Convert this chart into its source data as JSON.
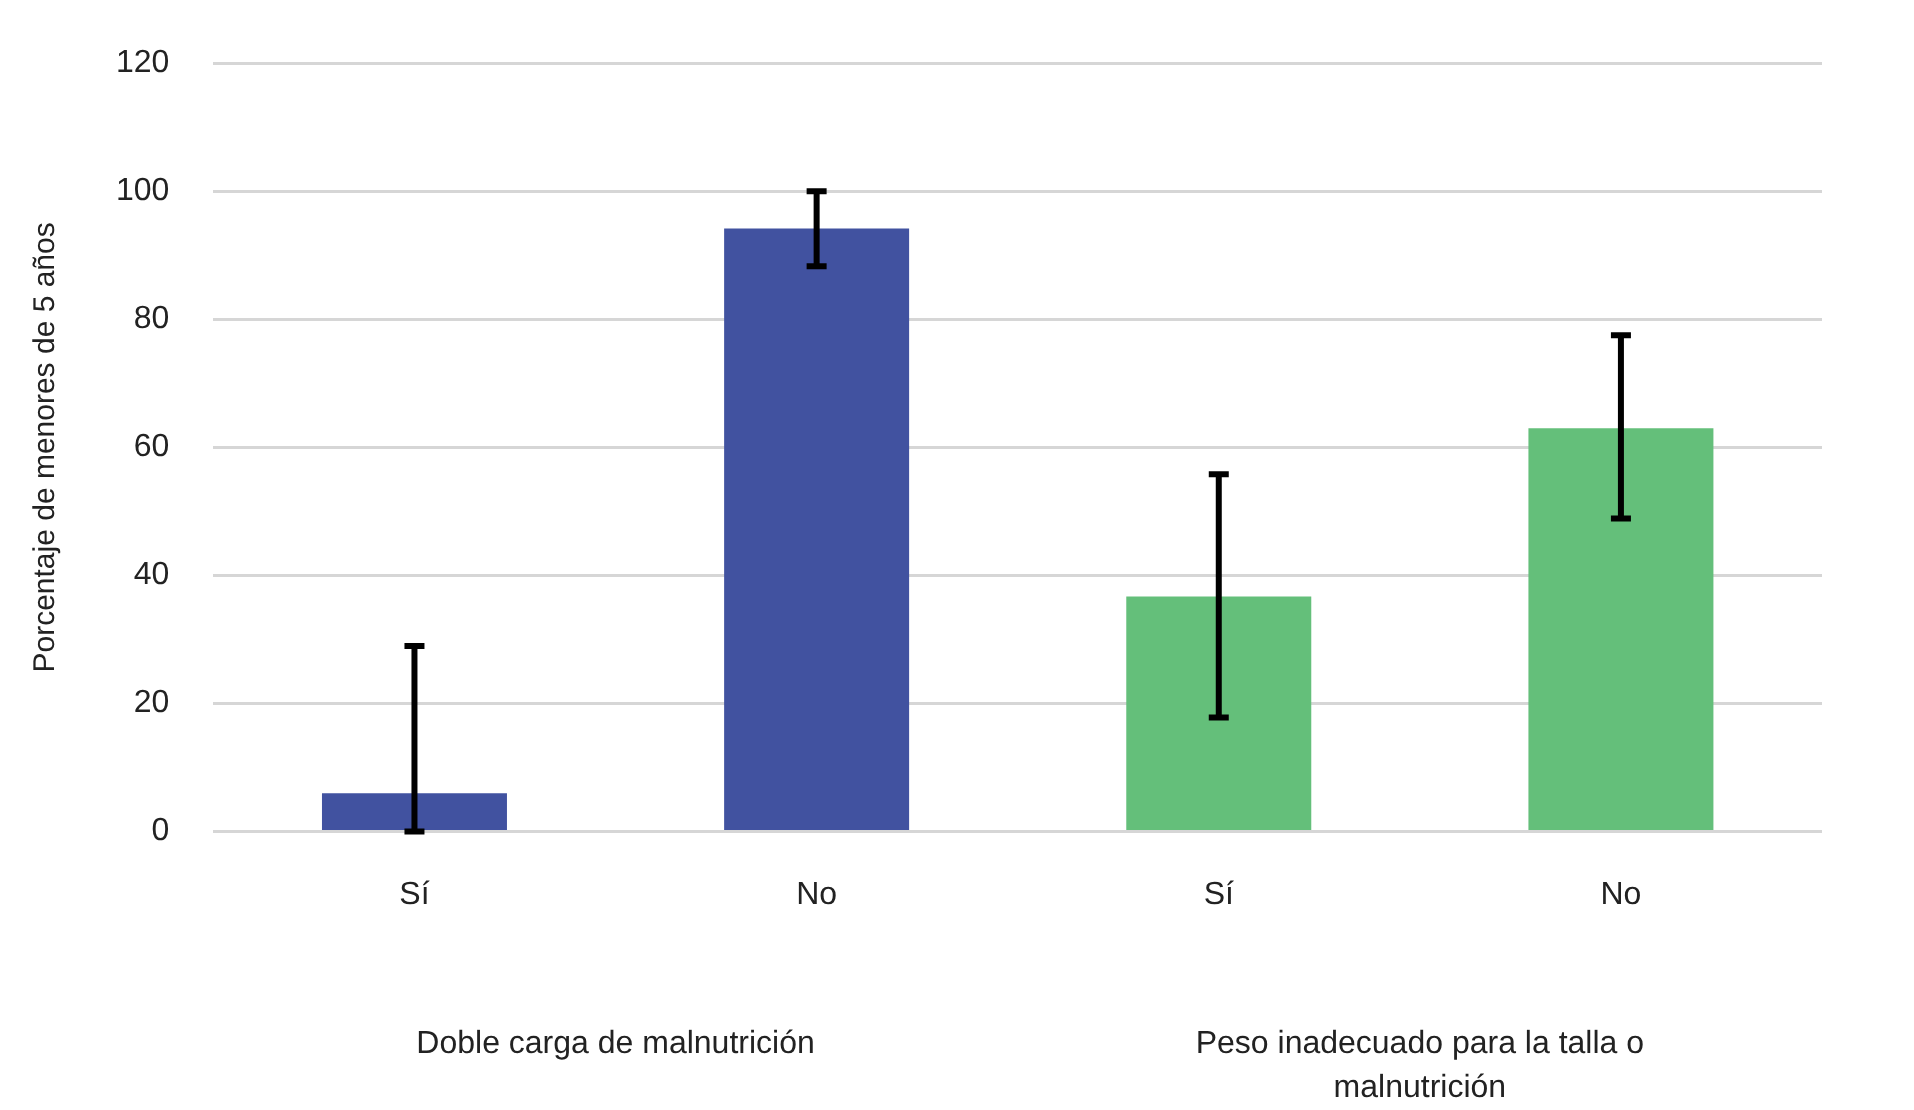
{
  "chart_data": {
    "type": "bar",
    "ylabel": "Porcentaje de menores de 5 años",
    "categories": [
      "Sí",
      "No",
      "Sí",
      "No"
    ],
    "values": [
      6,
      94.2,
      36.7,
      63
    ],
    "colors": [
      "#4152a0",
      "#4152a0",
      "#64bf7a",
      "#64bf7a"
    ],
    "errors": [
      [
        0,
        29
      ],
      [
        88.3,
        100
      ],
      [
        17.8,
        55.8
      ],
      [
        48.9,
        77.5
      ]
    ],
    "ylim": [
      0,
      120
    ],
    "yticks": [
      0,
      20,
      40,
      60,
      80,
      100,
      120
    ],
    "grid": "y",
    "legend": false,
    "annotations": [
      "Doble carga de malnutrición",
      "Peso inadecuado para la talla o malnutrición"
    ]
  }
}
